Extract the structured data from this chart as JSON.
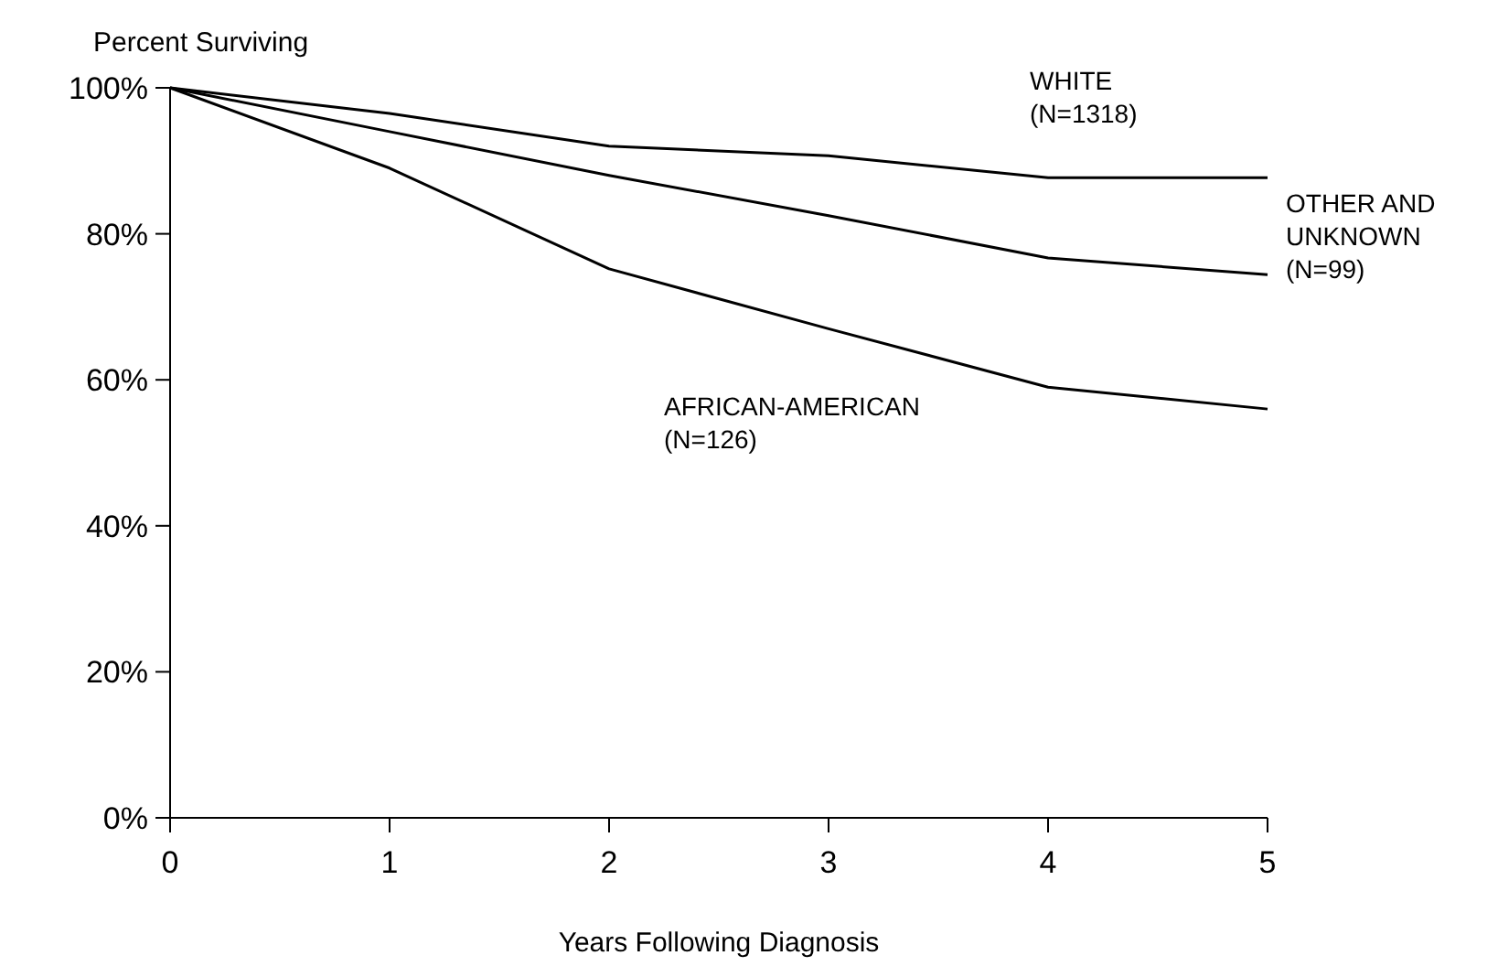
{
  "chart_data": {
    "type": "line",
    "ylabel": "Percent Surviving",
    "xlabel": "Years Following Diagnosis",
    "x": [
      0,
      1,
      2,
      3,
      4,
      5
    ],
    "series": [
      {
        "name": "WHITE\n(N=1318)",
        "color": "#000000",
        "values": [
          100,
          96.5,
          92,
          90.7,
          87.7,
          87.7
        ]
      },
      {
        "name": "OTHER AND\nUNKNOWN\n(N=99)",
        "color": "#000000",
        "values": [
          100,
          94,
          88,
          82.5,
          76.7,
          74.4
        ]
      },
      {
        "name": "AFRICAN-AMERICAN\n(N=126)",
        "color": "#000000",
        "values": [
          100,
          89,
          75.2,
          67,
          59,
          56
        ]
      }
    ],
    "xlim": [
      0,
      5
    ],
    "xticks": [
      0,
      1,
      2,
      3,
      4,
      5
    ],
    "ylim": [
      0,
      100
    ],
    "yticks": [
      {
        "value": 0,
        "label": "0%"
      },
      {
        "value": 20,
        "label": "20%"
      },
      {
        "value": 40,
        "label": "40%"
      },
      {
        "value": 60,
        "label": "60%"
      },
      {
        "value": 80,
        "label": "80%"
      },
      {
        "value": 100,
        "label": "100%"
      }
    ],
    "grid": false,
    "marker": "none",
    "line_style": "solid"
  }
}
